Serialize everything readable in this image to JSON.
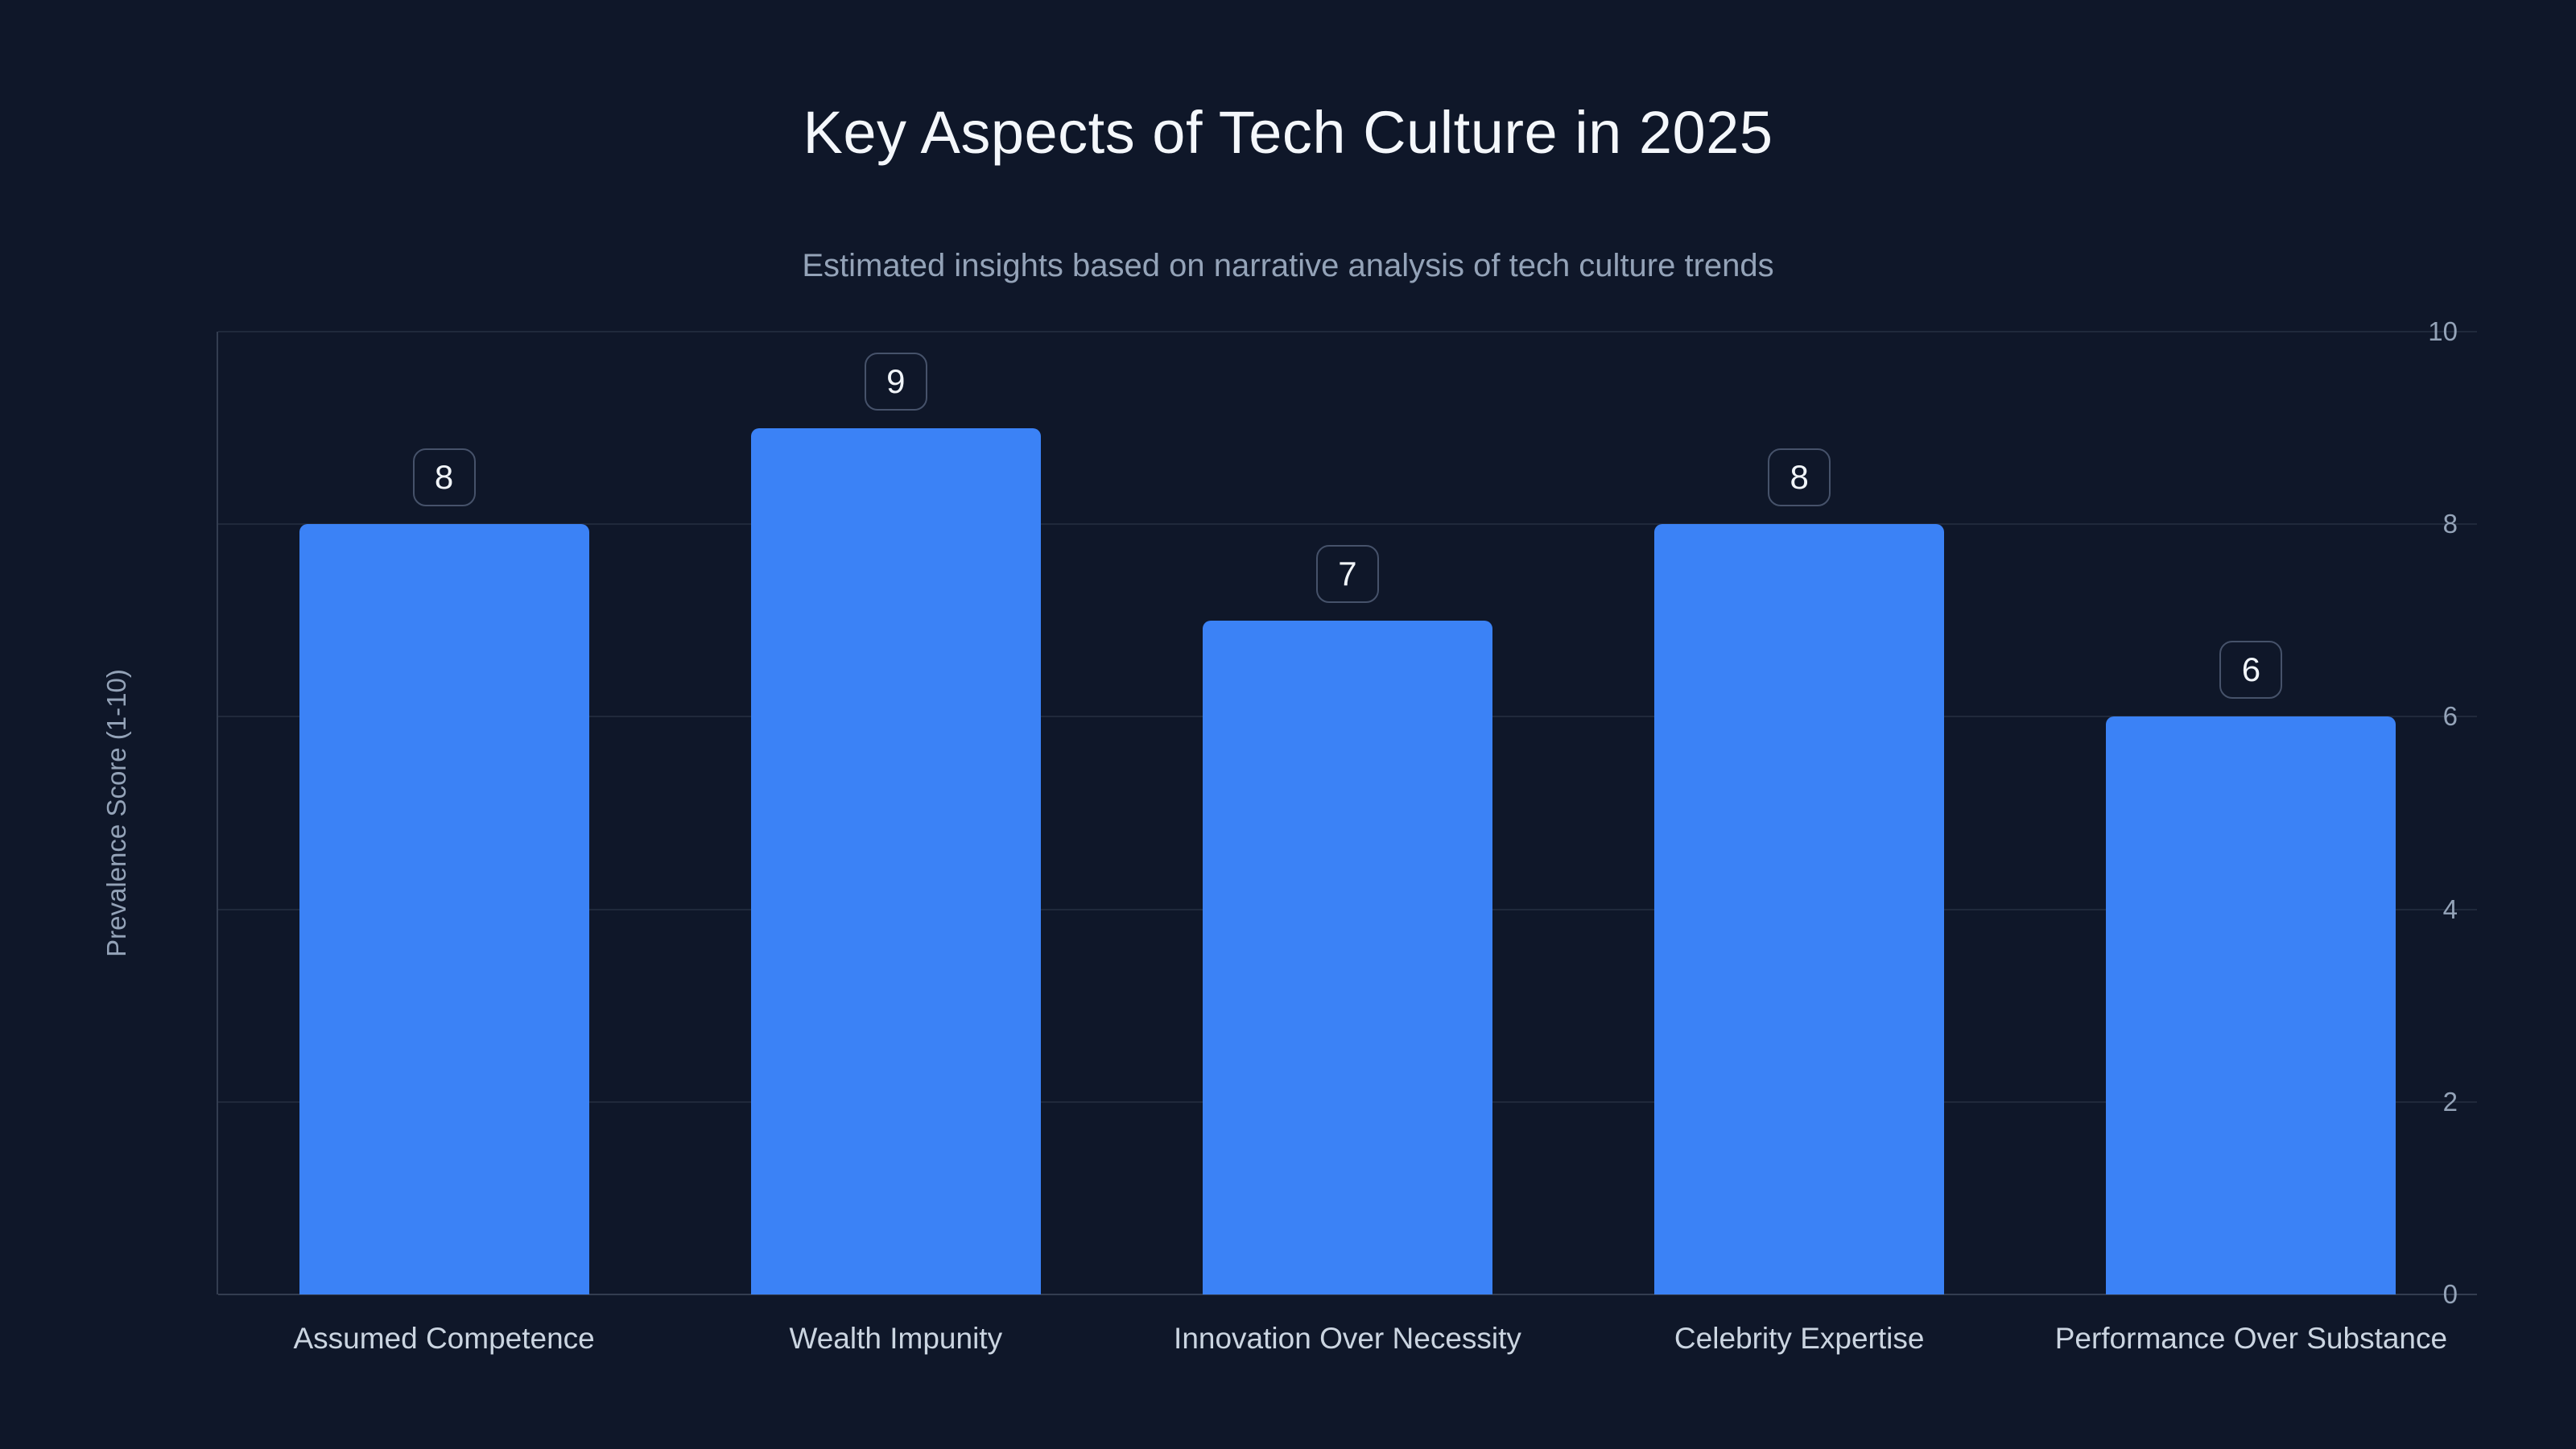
{
  "page": {
    "background_color": "#0f1729",
    "accent_color": "#3b82f6"
  },
  "chart_data": {
    "type": "bar",
    "title": "Key Aspects of Tech Culture in 2025",
    "subtitle": "Estimated insights based on narrative analysis of tech culture trends",
    "xlabel": "",
    "ylabel": "Prevalence Score (1-10)",
    "categories": [
      "Assumed Competence",
      "Wealth Impunity",
      "Innovation Over Necessity",
      "Celebrity Expertise",
      "Performance Over Substance"
    ],
    "values": [
      8,
      9,
      7,
      8,
      6
    ],
    "value_labels": [
      "8",
      "9",
      "7",
      "8",
      "6"
    ],
    "yticks": [
      0,
      2,
      4,
      6,
      8,
      10
    ],
    "ylim": [
      0,
      10
    ],
    "grid": true,
    "legend": false,
    "bar_color": "#3b82f6",
    "title_color": "#f4f7fb",
    "subtitle_color": "#94a3b8",
    "tick_label_color": "#94a3b8",
    "category_label_color": "#cbd5e1",
    "gridline_color": "rgba(148,163,184,0.13)",
    "badge_border_color": "#46526a",
    "badge_text_color": "#f1f5f9"
  }
}
